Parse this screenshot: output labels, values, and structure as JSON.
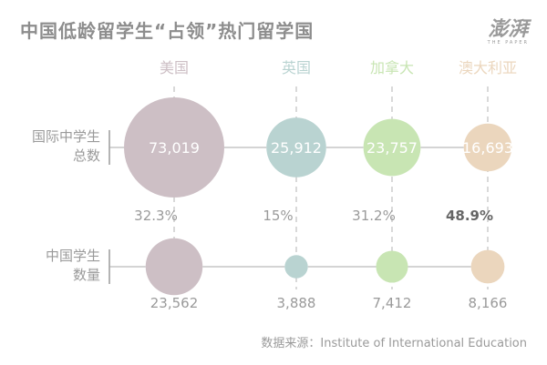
{
  "header": {
    "title": "中国低龄留学生“占领”热门留学国"
  },
  "logo": {
    "text": "澎湃",
    "subtext": "THE PAPER"
  },
  "source": "数据来源：Institute of International Education",
  "chart_data": {
    "type": "bubble",
    "title": "中国低龄留学生“占领”热门留学国",
    "categories": [
      "美国",
      "英国",
      "加拿大",
      "澳大利亚"
    ],
    "category_colors": [
      "#cdbfc5",
      "#b9d3d1",
      "#c8e5b3",
      "#ebd6bd"
    ],
    "series": [
      {
        "name": "国际中学生总数",
        "values": [
          73019,
          25912,
          23757,
          16693
        ],
        "labels": [
          "73,019",
          "25,912",
          "23,757",
          "16,693"
        ]
      },
      {
        "name": "中国学生数量",
        "values": [
          23562,
          3888,
          7412,
          8166
        ],
        "labels": [
          "23,562",
          "3,888",
          "7,412",
          "8,166"
        ]
      }
    ],
    "percentages": [
      "32.3%",
      "15%",
      "31.2%",
      "48.9%"
    ],
    "highlight_percentage_index": 3,
    "row_labels": [
      [
        "国际中学生",
        "总数"
      ],
      [
        "中国学生",
        "数量"
      ]
    ]
  }
}
